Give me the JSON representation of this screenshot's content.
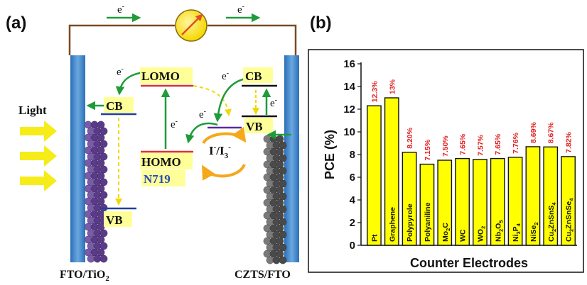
{
  "panel_a": {
    "label": "(a)",
    "electron": "e",
    "electron_sup": "-",
    "light": "Light",
    "levels": {
      "cb_left": "CB",
      "vb_left": "VB",
      "lomo": "LOMO",
      "homo": "HOMO",
      "dye": "N719",
      "cb_right": "CB",
      "vb_right": "VB"
    },
    "redox_i": "I",
    "redox_sup": "-",
    "redox_sep": "/I",
    "redox_sub": "3",
    "electrode_left_main": "FTO/TiO",
    "electrode_left_sub": "2",
    "electrode_right": "CZTS/FTO",
    "colors": {
      "electrode_bar": "#3b7fc4",
      "arrow_green": "#1f9b3a",
      "highlight": "#ffff99",
      "level_red": "#e03030",
      "level_blue": "#2040a0",
      "wire": "#7a4a22",
      "light_arrow": "#f5ec1a",
      "redox_orange": "#f5a81a",
      "dye_text": "#2a4ab8",
      "dots_purple": "#5a3a8a",
      "dots_gray": "#4a4a4a"
    }
  },
  "panel_b": {
    "label": "(b)"
  },
  "chart_data": {
    "type": "bar",
    "ylabel": "PCE (%)",
    "xlabel": "Counter Electrodes",
    "ylim": [
      0,
      16
    ],
    "yticks": [
      0,
      2,
      4,
      6,
      8,
      10,
      12,
      14,
      16
    ],
    "grid": false,
    "bar_color": "#ffff00",
    "value_label_color": "#e02020",
    "categories": [
      {
        "base": "Pt"
      },
      {
        "base": "Graphene"
      },
      {
        "base": "Polypyrole"
      },
      {
        "base": "Polyaniline"
      },
      {
        "base": "Mo",
        "sub": "2",
        "rest": "C"
      },
      {
        "base": "WC"
      },
      {
        "base": "WO",
        "sub": "2"
      },
      {
        "base": "Nb",
        "sub": "2",
        "rest": "O",
        "sub2": "5"
      },
      {
        "base": "Ni",
        "sub": "3",
        "rest": "P",
        "sub2": "4"
      },
      {
        "base": "NiSe",
        "sub": "2"
      },
      {
        "base": "Cu",
        "sub": "2",
        "rest": "ZnSnS",
        "sub2": "4"
      },
      {
        "base": "Cu",
        "sub": "2",
        "rest": "ZnSnSe",
        "sub2": "4"
      }
    ],
    "values": [
      12.3,
      13.0,
      8.2,
      7.15,
      7.5,
      7.65,
      7.57,
      7.65,
      7.76,
      8.69,
      8.67,
      7.82
    ],
    "value_labels": [
      "12.3%",
      "13%",
      "8.20%",
      "7.15%",
      "7.50%",
      "7.65%",
      "7.57%",
      "7.65%",
      "7.76%",
      "8.69%",
      "8.67%",
      "7.82%"
    ]
  }
}
